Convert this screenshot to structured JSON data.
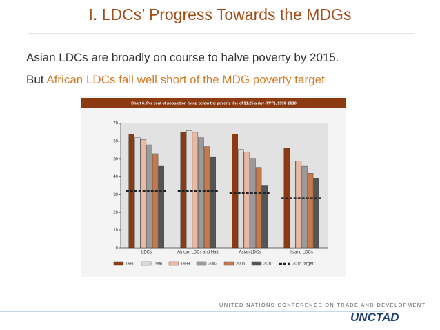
{
  "slide": {
    "title": "I.   LDCs’ Progress Towards the MDGs",
    "line1": "Asian LDCs are broadly on course to halve poverty by 2015.",
    "line2_start": "But",
    "line2_highlight": "African LDCs fall well short of the MDG poverty target",
    "footer": "UNITED NATIONS CONFERENCE ON TRADE AND DEVELOPMENT",
    "logo": "UNCTAD"
  },
  "chart_data": {
    "type": "bar",
    "title": "Chart 6. Per cent of population living below the poverty line of $1.25 a day (PPP), 1990–2010",
    "categories": [
      "LDCs",
      "African LDCs and Haiti",
      "Asian LDCs",
      "Island LDCs"
    ],
    "series": [
      {
        "name": "1990",
        "color": "#8b3a12",
        "values": [
          64,
          65,
          64,
          56
        ]
      },
      {
        "name": "1996",
        "color": "#dcdcdc",
        "values": [
          62,
          66,
          55,
          49
        ]
      },
      {
        "name": "1999",
        "color": "#e9b9a3",
        "values": [
          61,
          65,
          54,
          49
        ]
      },
      {
        "name": "2002",
        "color": "#9a9a9a",
        "values": [
          58,
          62,
          50,
          46
        ]
      },
      {
        "name": "2005",
        "color": "#c47a4c",
        "values": [
          53,
          57,
          45,
          42
        ]
      },
      {
        "name": "2010",
        "color": "#555555",
        "values": [
          46,
          51,
          35,
          39
        ]
      }
    ],
    "target": {
      "name": "2015 target",
      "color": "#222222",
      "values": [
        32,
        32,
        31,
        28
      ]
    },
    "ylim": [
      0,
      70
    ],
    "yticks": [
      0,
      10,
      20,
      30,
      40,
      50,
      60,
      70
    ],
    "grid": false
  }
}
